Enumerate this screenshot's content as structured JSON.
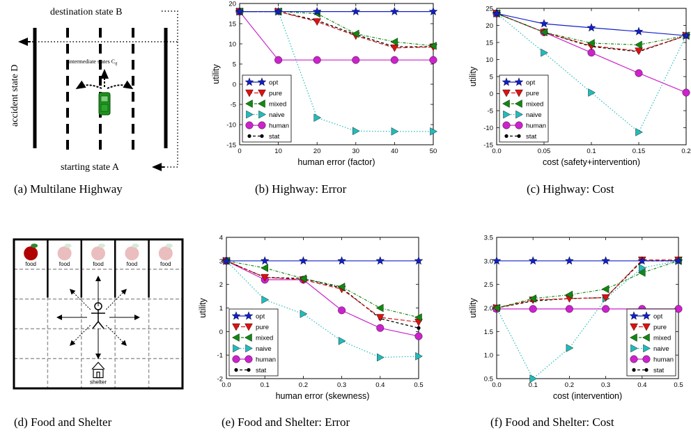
{
  "captions": {
    "a": "(a) Multilane Highway",
    "b": "(b) Highway: Error",
    "c": "(c) Highway: Cost",
    "d": "(d) Food and Shelter",
    "e": "(e) Food and Shelter: Error",
    "f": "(f) Food and Shelter: Cost"
  },
  "diagram_a": {
    "destination": "destination state B",
    "accident": "accident state D",
    "intermediate": "intermediate states C",
    "intermediate_sub": "ij",
    "start": "starting state A"
  },
  "diagram_d": {
    "food": "food",
    "shelter": "shelter"
  },
  "chart_data": [
    {
      "id": "b",
      "type": "line",
      "xlabel": "human error (factor)",
      "ylabel": "utility",
      "xlim": [
        0,
        50
      ],
      "ylim": [
        -15,
        20
      ],
      "xticks": [
        0,
        10,
        20,
        30,
        40,
        50
      ],
      "yticks": [
        -15,
        -10,
        -5,
        0,
        5,
        10,
        15,
        20
      ],
      "x": [
        0,
        10,
        20,
        30,
        40,
        50
      ],
      "legend": "bottom-left",
      "series": [
        {
          "name": "opt",
          "values": [
            18,
            18,
            18,
            18,
            18,
            18
          ],
          "color": "#1020c8",
          "marker": "star",
          "dash": ""
        },
        {
          "name": "pure",
          "values": [
            18,
            18,
            15.5,
            12,
            9,
            9.2
          ],
          "color": "#dd1111",
          "marker": "tri-down",
          "dash": "6,3"
        },
        {
          "name": "mixed",
          "values": [
            18,
            18,
            17.5,
            12.5,
            10.5,
            9.5
          ],
          "color": "#118811",
          "marker": "tri-left",
          "dash": "4,2,1,2"
        },
        {
          "name": "naive",
          "values": [
            18,
            18,
            -8.3,
            -11.6,
            -11.7,
            -11.7
          ],
          "color": "#22bbbb",
          "marker": "tri-right",
          "dash": "1.5,2.5"
        },
        {
          "name": "human",
          "values": [
            18,
            6,
            6,
            6,
            6,
            6
          ],
          "color": "#cc22cc",
          "marker": "circle",
          "dash": ""
        },
        {
          "name": "stat",
          "values": [
            18,
            18,
            15.8,
            12.3,
            9.3,
            9.3
          ],
          "color": "#000000",
          "marker": "dot",
          "dash": "4,3"
        }
      ]
    },
    {
      "id": "c",
      "type": "line",
      "xlabel": "cost (safety+intervention)",
      "ylabel": "utility",
      "xlim": [
        0,
        0.2
      ],
      "ylim": [
        -15,
        25
      ],
      "xticks": [
        0,
        0.05,
        0.1,
        0.15,
        0.2
      ],
      "xtick_labels": [
        "0.0",
        "0.05",
        "0.1",
        "0.15",
        "0.2"
      ],
      "yticks": [
        -15,
        -10,
        -5,
        0,
        5,
        10,
        15,
        20,
        25
      ],
      "x": [
        0,
        0.05,
        0.1,
        0.15,
        0.2
      ],
      "legend": "bottom-left",
      "series": [
        {
          "name": "opt",
          "values": [
            23.5,
            20.5,
            19.3,
            18.2,
            17
          ],
          "color": "#1020c8",
          "marker": "star",
          "dash": ""
        },
        {
          "name": "pure",
          "values": [
            23.5,
            18,
            14,
            12.5,
            17
          ],
          "color": "#dd1111",
          "marker": "tri-down",
          "dash": "6,3"
        },
        {
          "name": "mixed",
          "values": [
            23.5,
            18,
            14.8,
            14.3,
            17
          ],
          "color": "#118811",
          "marker": "tri-left",
          "dash": "4,2,1,2"
        },
        {
          "name": "naive",
          "values": [
            23.5,
            12,
            0.3,
            -11.3,
            17
          ],
          "color": "#22bbbb",
          "marker": "tri-right",
          "dash": "1.5,2.5"
        },
        {
          "name": "human",
          "values": [
            23.5,
            18,
            12,
            6,
            0.3
          ],
          "color": "#cc22cc",
          "marker": "circle",
          "dash": ""
        },
        {
          "name": "stat",
          "values": [
            23.5,
            18,
            13.8,
            12.3,
            17
          ],
          "color": "#000000",
          "marker": "dot",
          "dash": "4,3"
        }
      ]
    },
    {
      "id": "e",
      "type": "line",
      "xlabel": "human error (skewness)",
      "ylabel": "utility",
      "xlim": [
        0,
        0.5
      ],
      "ylim": [
        -2,
        4
      ],
      "xticks": [
        0,
        0.1,
        0.2,
        0.3,
        0.4,
        0.5
      ],
      "xtick_labels": [
        "0.0",
        "0.1",
        "0.2",
        "0.3",
        "0.4",
        "0.5"
      ],
      "yticks": [
        -2,
        -1,
        0,
        1,
        2,
        3,
        4
      ],
      "x": [
        0,
        0.1,
        0.2,
        0.3,
        0.4,
        0.5
      ],
      "legend": "bottom-left",
      "series": [
        {
          "name": "opt",
          "values": [
            3,
            3,
            3,
            3,
            3,
            3
          ],
          "color": "#1020c8",
          "marker": "star",
          "dash": ""
        },
        {
          "name": "pure",
          "values": [
            3,
            2.3,
            2.2,
            1.8,
            0.6,
            0.4
          ],
          "color": "#dd1111",
          "marker": "tri-down",
          "dash": "6,3"
        },
        {
          "name": "mixed",
          "values": [
            3,
            2.7,
            2.25,
            1.9,
            1,
            0.6
          ],
          "color": "#118811",
          "marker": "tri-left",
          "dash": "4,2,1,2"
        },
        {
          "name": "naive",
          "values": [
            3,
            1.35,
            0.75,
            -0.4,
            -1.1,
            -1.05
          ],
          "color": "#22bbbb",
          "marker": "tri-right",
          "dash": "1.5,2.5"
        },
        {
          "name": "human",
          "values": [
            3,
            2.2,
            2.2,
            0.9,
            0.15,
            -0.2
          ],
          "color": "#cc22cc",
          "marker": "circle",
          "dash": ""
        },
        {
          "name": "stat",
          "values": [
            3,
            2.3,
            2.25,
            1.85,
            0.55,
            0.15
          ],
          "color": "#000000",
          "marker": "dot",
          "dash": "4,3"
        }
      ]
    },
    {
      "id": "f",
      "type": "line",
      "xlabel": "cost (intervention)",
      "ylabel": "utility",
      "xlim": [
        0,
        0.5
      ],
      "ylim": [
        0.5,
        3.5
      ],
      "xticks": [
        0,
        0.1,
        0.2,
        0.3,
        0.4,
        0.5
      ],
      "xtick_labels": [
        "0.0",
        "0.1",
        "0.2",
        "0.3",
        "0.4",
        "0.5"
      ],
      "yticks": [
        0.5,
        1,
        1.5,
        2,
        2.5,
        3,
        3.5
      ],
      "ytick_labels": [
        "0.5",
        "1.0",
        "1.5",
        "2.0",
        "2.5",
        "3.0",
        "3.5"
      ],
      "x": [
        0,
        0.1,
        0.2,
        0.3,
        0.4,
        0.5
      ],
      "legend": "bottom-right",
      "series": [
        {
          "name": "opt",
          "values": [
            3,
            3,
            3,
            3,
            3,
            3
          ],
          "color": "#1020c8",
          "marker": "star",
          "dash": ""
        },
        {
          "name": "pure",
          "values": [
            2,
            2.17,
            2.2,
            2.22,
            3.02,
            3.02
          ],
          "color": "#dd1111",
          "marker": "tri-down",
          "dash": "6,3"
        },
        {
          "name": "mixed",
          "values": [
            2,
            2.2,
            2.28,
            2.4,
            2.75,
            3.0
          ],
          "color": "#118811",
          "marker": "tri-left",
          "dash": "4,2,1,2"
        },
        {
          "name": "naive",
          "values": [
            2,
            0.5,
            1.15,
            2.2,
            2.85,
            3.0
          ],
          "color": "#22bbbb",
          "marker": "tri-right",
          "dash": "1.5,2.5"
        },
        {
          "name": "human",
          "values": [
            1.98,
            1.98,
            1.98,
            1.98,
            1.98,
            1.98
          ],
          "color": "#cc22cc",
          "marker": "circle",
          "dash": ""
        },
        {
          "name": "stat",
          "values": [
            2,
            2.15,
            2.2,
            2.22,
            3.0,
            3.0
          ],
          "color": "#000000",
          "marker": "dot",
          "dash": "4,3"
        }
      ]
    }
  ]
}
